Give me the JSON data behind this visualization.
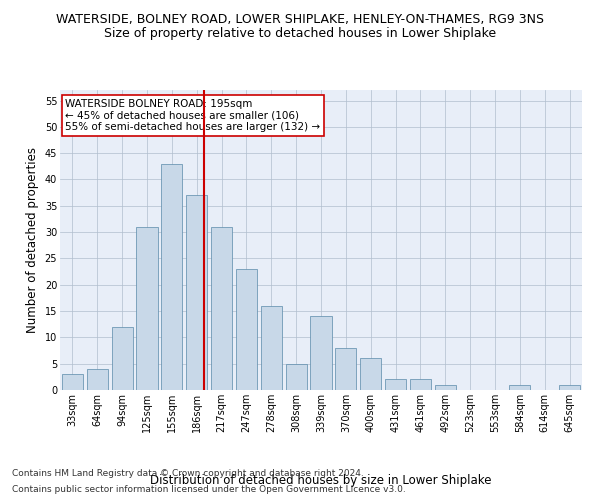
{
  "title": "WATERSIDE, BOLNEY ROAD, LOWER SHIPLAKE, HENLEY-ON-THAMES, RG9 3NS",
  "subtitle": "Size of property relative to detached houses in Lower Shiplake",
  "xlabel": "Distribution of detached houses by size in Lower Shiplake",
  "ylabel": "Number of detached properties",
  "categories": [
    "33sqm",
    "64sqm",
    "94sqm",
    "125sqm",
    "155sqm",
    "186sqm",
    "217sqm",
    "247sqm",
    "278sqm",
    "308sqm",
    "339sqm",
    "370sqm",
    "400sqm",
    "431sqm",
    "461sqm",
    "492sqm",
    "523sqm",
    "553sqm",
    "584sqm",
    "614sqm",
    "645sqm"
  ],
  "values": [
    3,
    4,
    12,
    31,
    43,
    37,
    31,
    23,
    16,
    5,
    14,
    8,
    6,
    2,
    2,
    1,
    0,
    0,
    1,
    0,
    1
  ],
  "bar_color": "#c8d8e8",
  "bar_edge_color": "#5a8aaa",
  "vline_color": "#cc0000",
  "ylim": [
    0,
    57
  ],
  "yticks": [
    0,
    5,
    10,
    15,
    20,
    25,
    30,
    35,
    40,
    45,
    50,
    55
  ],
  "annotation_text": "WATERSIDE BOLNEY ROAD: 195sqm\n← 45% of detached houses are smaller (106)\n55% of semi-detached houses are larger (132) →",
  "annotation_box_color": "#ffffff",
  "annotation_box_edge": "#cc0000",
  "footer1": "Contains HM Land Registry data © Crown copyright and database right 2024.",
  "footer2": "Contains public sector information licensed under the Open Government Licence v3.0.",
  "plot_bg_color": "#e8eef8",
  "title_fontsize": 9,
  "subtitle_fontsize": 9,
  "axis_label_fontsize": 8.5,
  "tick_fontsize": 7,
  "annotation_fontsize": 7.5,
  "footer_fontsize": 6.5
}
